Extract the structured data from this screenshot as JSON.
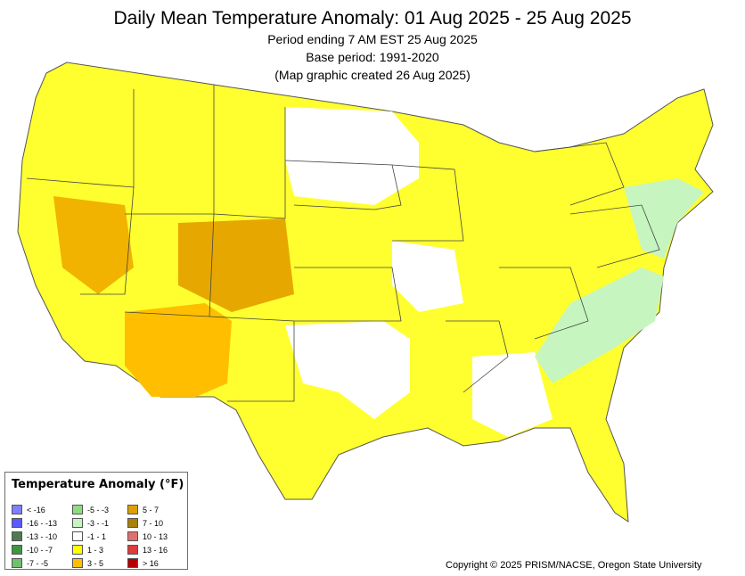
{
  "header": {
    "title": "Daily Mean Temperature Anomaly: 01 Aug 2025 - 25 Aug 2025",
    "line1": "Period ending 7 AM EST 25 Aug 2025",
    "line2": "Base period: 1991-2020",
    "line3": "(Map graphic created 26 Aug 2025)"
  },
  "legend": {
    "title": "Temperature Anomaly (°F)",
    "columns": [
      [
        {
          "label": "< -16",
          "color": "#7f7fff"
        },
        {
          "label": "-16 - -13",
          "color": "#5a5aff"
        },
        {
          "label": "-13 - -10",
          "color": "#4f7a4f"
        },
        {
          "label": "-10 - -7",
          "color": "#3f963f"
        },
        {
          "label": "-7 - -5",
          "color": "#6fc06f"
        }
      ],
      [
        {
          "label": "-5 - -3",
          "color": "#8fdc7f"
        },
        {
          "label": "-3 - -1",
          "color": "#c6f5c0"
        },
        {
          "label": "-1 - 1",
          "color": "#ffffff"
        },
        {
          "label": "1 - 3",
          "color": "#ffff00"
        },
        {
          "label": "3 - 5",
          "color": "#ffbf00"
        }
      ],
      [
        {
          "label": "5 - 7",
          "color": "#dca000"
        },
        {
          "label": "7 - 10",
          "color": "#a8800a"
        },
        {
          "label": "10 - 13",
          "color": "#e07070"
        },
        {
          "label": "13 - 16",
          "color": "#dc3c3c"
        },
        {
          "label": "> 16",
          "color": "#b40000"
        }
      ]
    ]
  },
  "footer": {
    "copyright": "Copyright © 2025 PRISM/NACSE, Oregon State University"
  }
}
